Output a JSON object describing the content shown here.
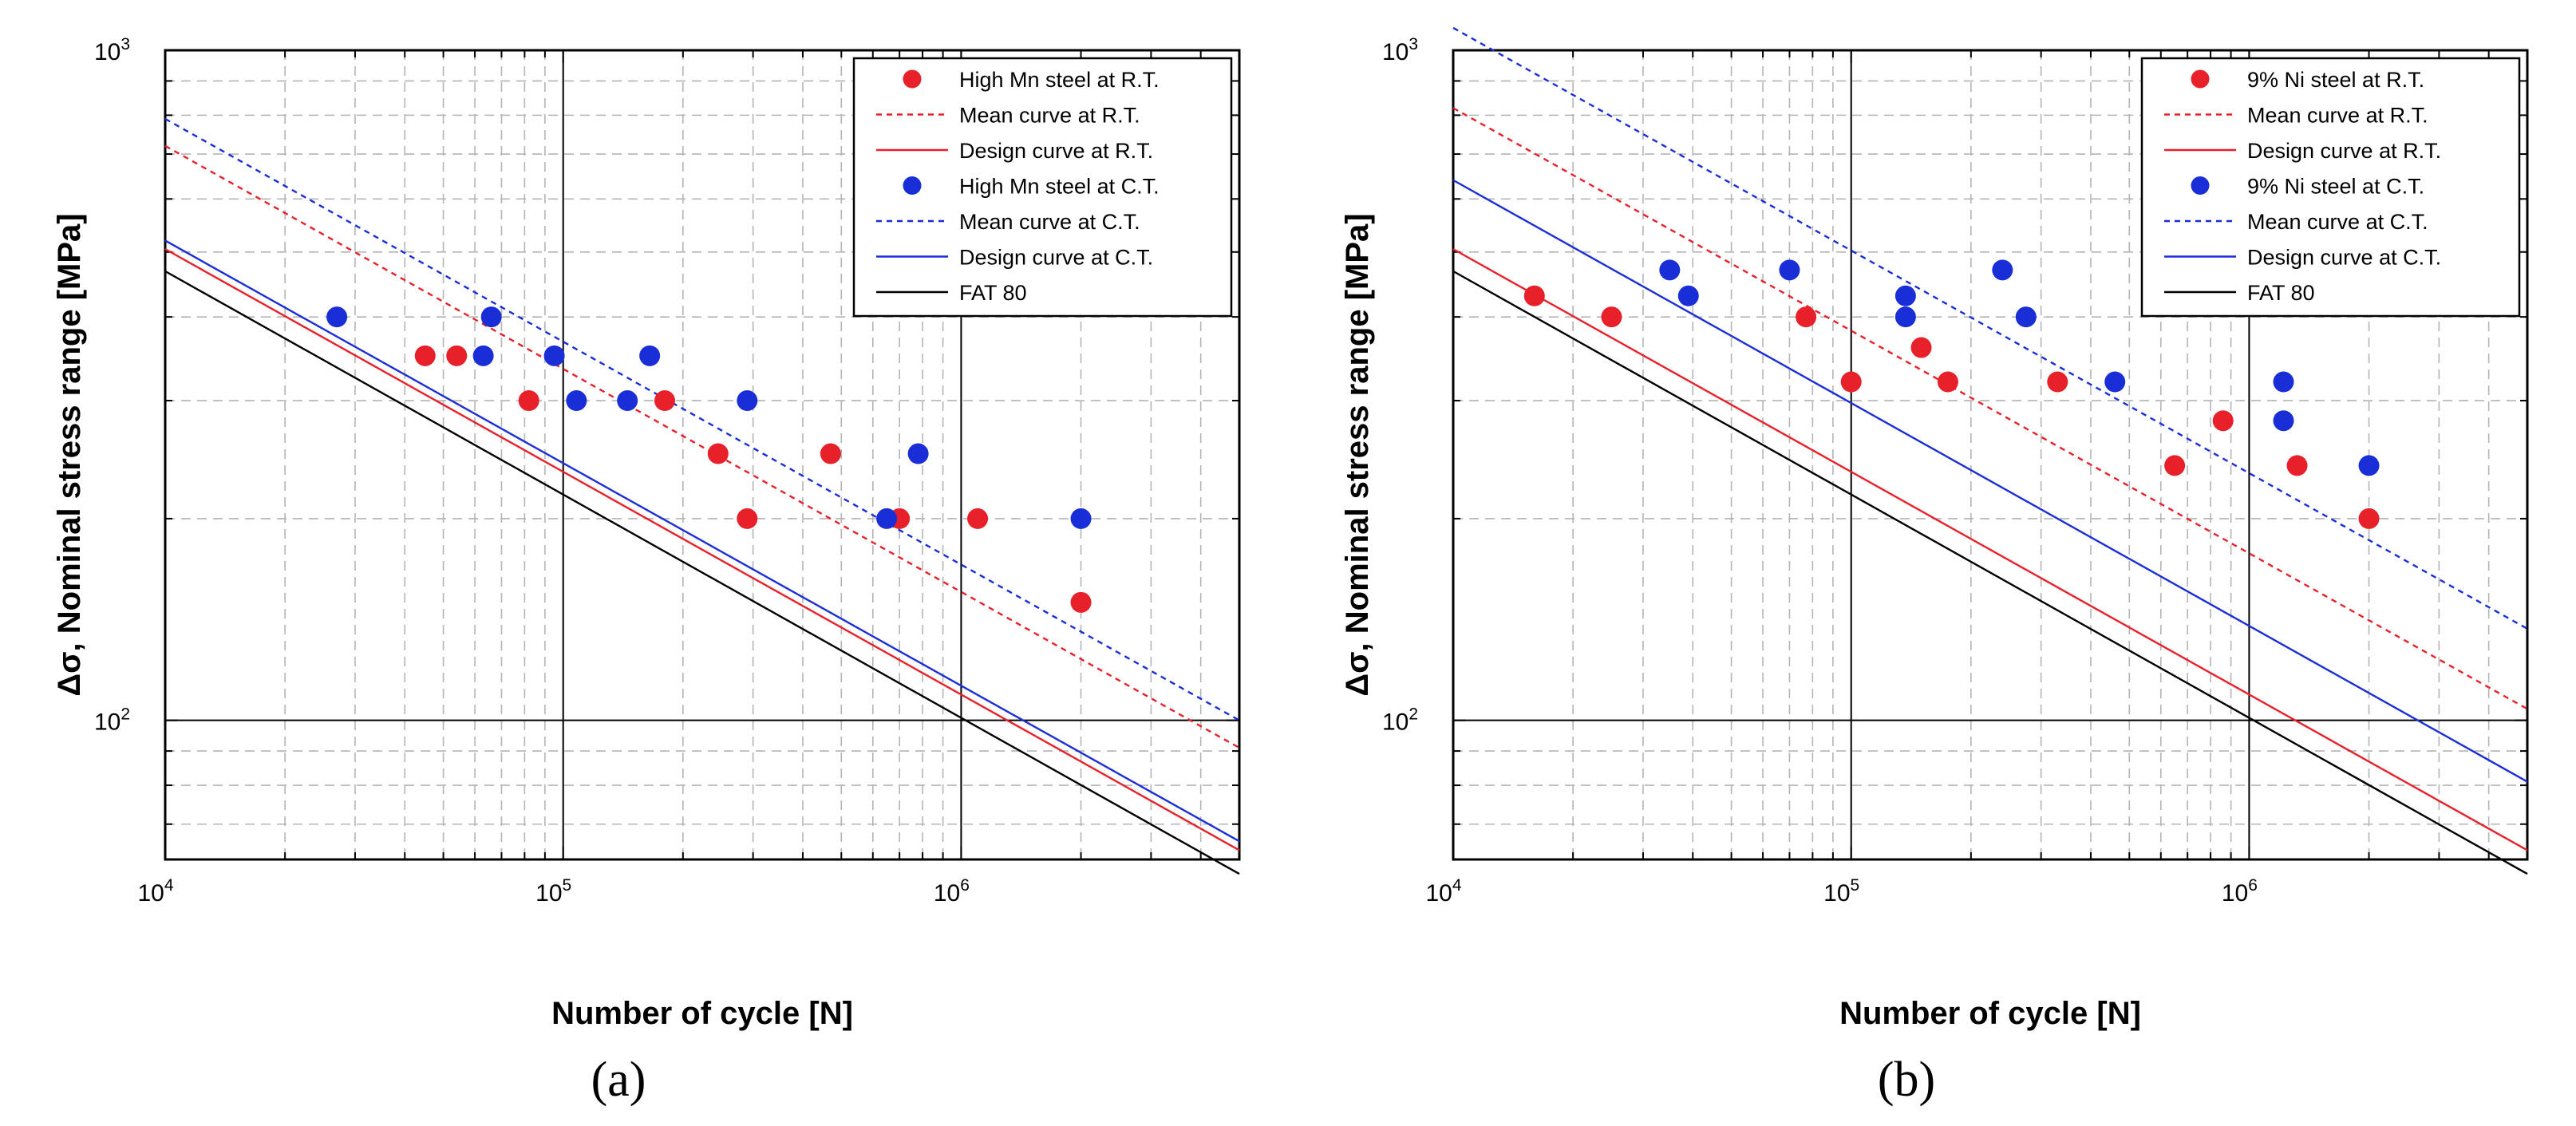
{
  "chart_data": [
    {
      "type": "scatter",
      "panel_label": "(a)",
      "xlabel": "Number of cycle [N]",
      "ylabel": "Δσ, Nominal stress range [MPa]",
      "xscale": "log",
      "yscale": "log",
      "xlim": [
        10000,
        5000000
      ],
      "ylim": [
        62,
        1000
      ],
      "xticks": [
        {
          "base": "10",
          "exp": "4",
          "value": 10000
        },
        {
          "base": "10",
          "exp": "5",
          "value": 100000
        },
        {
          "base": "10",
          "exp": "6",
          "value": 1000000
        }
      ],
      "yticks": [
        {
          "base": "10",
          "exp": "2",
          "value": 100
        },
        {
          "base": "10",
          "exp": "3",
          "value": 1000
        }
      ],
      "grid": true,
      "legend_position": "top-right",
      "series": [
        {
          "name": "High Mn steel at R.T.",
          "kind": "points",
          "color": "#e8202a",
          "points": [
            [
              45000,
              350
            ],
            [
              54000,
              350
            ],
            [
              82000,
              300
            ],
            [
              180000,
              300
            ],
            [
              245000,
              250
            ],
            [
              290000,
              200
            ],
            [
              470000,
              250
            ],
            [
              700000,
              200
            ],
            [
              1100000,
              200
            ],
            [
              2000000,
              150
            ]
          ]
        },
        {
          "name": "Mean curve at R.T.",
          "kind": "line",
          "color": "#e8202a",
          "dash": "dot",
          "line": [
            [
              10000,
              720
            ],
            [
              5000000,
              91
            ]
          ]
        },
        {
          "name": "Design curve at R.T.",
          "kind": "line",
          "color": "#e8202a",
          "dash": "solid",
          "line": [
            [
              10000,
              505
            ],
            [
              5000000,
              64
            ]
          ]
        },
        {
          "name": "High Mn steel at C.T.",
          "kind": "points",
          "color": "#1a2ed8",
          "points": [
            [
              27000,
              400
            ],
            [
              63000,
              350
            ],
            [
              66000,
              400
            ],
            [
              95000,
              350
            ],
            [
              108000,
              300
            ],
            [
              145000,
              300
            ],
            [
              165000,
              350
            ],
            [
              290000,
              300
            ],
            [
              650000,
              200
            ],
            [
              780000,
              250
            ],
            [
              2000000,
              200
            ]
          ]
        },
        {
          "name": "Mean curve at C.T.",
          "kind": "line",
          "color": "#1a2ed8",
          "dash": "dot",
          "line": [
            [
              10000,
              790
            ],
            [
              5000000,
              100
            ]
          ]
        },
        {
          "name": "Design curve at C.T.",
          "kind": "line",
          "color": "#1a2ed8",
          "dash": "solid",
          "line": [
            [
              10000,
              520
            ],
            [
              5000000,
              66
            ]
          ]
        },
        {
          "name": "FAT 80",
          "kind": "line",
          "color": "#000000",
          "dash": "solid",
          "line": [
            [
              10000,
              468
            ],
            [
              5000000,
              59
            ]
          ]
        }
      ]
    },
    {
      "type": "scatter",
      "panel_label": "(b)",
      "xlabel": "Number of cycle [N]",
      "ylabel": "Δσ, Nominal stress range [MPa]",
      "xscale": "log",
      "yscale": "log",
      "xlim": [
        10000,
        5000000
      ],
      "ylim": [
        62,
        1000
      ],
      "xticks": [
        {
          "base": "10",
          "exp": "4",
          "value": 10000
        },
        {
          "base": "10",
          "exp": "5",
          "value": 100000
        },
        {
          "base": "10",
          "exp": "6",
          "value": 1000000
        }
      ],
      "yticks": [
        {
          "base": "10",
          "exp": "2",
          "value": 100
        },
        {
          "base": "10",
          "exp": "3",
          "value": 1000
        }
      ],
      "grid": true,
      "legend_position": "top-right",
      "series": [
        {
          "name": "9% Ni steel at R.T.",
          "kind": "points",
          "color": "#e8202a",
          "points": [
            [
              16000,
              430
            ],
            [
              25000,
              400
            ],
            [
              77000,
              400
            ],
            [
              100000,
              320
            ],
            [
              150000,
              360
            ],
            [
              175000,
              320
            ],
            [
              330000,
              320
            ],
            [
              650000,
              240
            ],
            [
              860000,
              280
            ],
            [
              1320000,
              240
            ],
            [
              2000000,
              200
            ]
          ]
        },
        {
          "name": "Mean curve at R.T.",
          "kind": "line",
          "color": "#e8202a",
          "dash": "dot",
          "line": [
            [
              10000,
              820
            ],
            [
              5000000,
              104
            ]
          ]
        },
        {
          "name": "Design curve at R.T.",
          "kind": "line",
          "color": "#e8202a",
          "dash": "solid",
          "line": [
            [
              10000,
              505
            ],
            [
              5000000,
              64
            ]
          ]
        },
        {
          "name": "9% Ni steel at C.T.",
          "kind": "points",
          "color": "#1a2ed8",
          "points": [
            [
              35000,
              470
            ],
            [
              39000,
              430
            ],
            [
              70000,
              470
            ],
            [
              137000,
              430
            ],
            [
              137000,
              400
            ],
            [
              240000,
              470
            ],
            [
              275000,
              400
            ],
            [
              460000,
              320
            ],
            [
              1220000,
              320
            ],
            [
              1220000,
              280
            ],
            [
              2000000,
              240
            ]
          ]
        },
        {
          "name": "Mean curve at C.T.",
          "kind": "line",
          "color": "#1a2ed8",
          "dash": "dot",
          "line": [
            [
              10000,
              1080
            ],
            [
              5000000,
              137
            ]
          ]
        },
        {
          "name": "Design curve at C.T.",
          "kind": "line",
          "color": "#1a2ed8",
          "dash": "solid",
          "line": [
            [
              10000,
              640
            ],
            [
              5000000,
              81
            ]
          ]
        },
        {
          "name": "FAT 80",
          "kind": "line",
          "color": "#000000",
          "dash": "solid",
          "line": [
            [
              10000,
              468
            ],
            [
              5000000,
              59
            ]
          ]
        }
      ]
    }
  ]
}
